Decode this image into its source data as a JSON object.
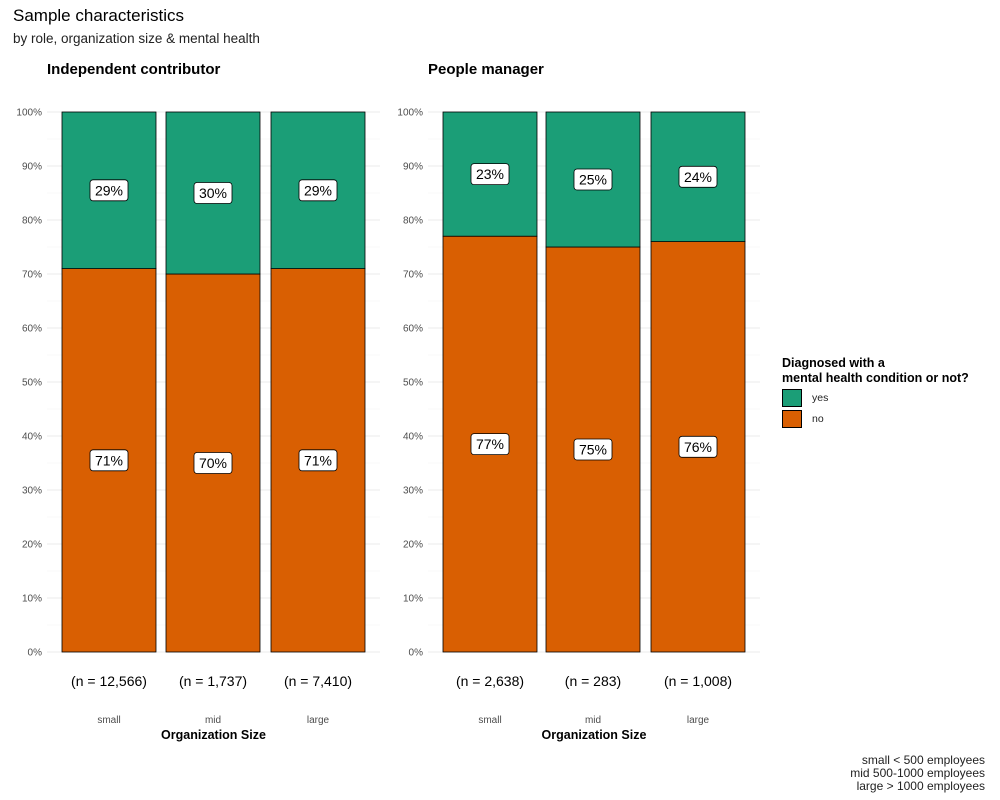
{
  "title": "Sample characteristics",
  "subtitle": "by role, organization size & mental health",
  "caption": [
    "small < 500 employees",
    "mid 500-1000 employees",
    "large > 1000 employees"
  ],
  "colors": {
    "yes": "#1b9e77",
    "no": "#d95f02"
  },
  "legend": {
    "title": [
      "Diagnosed with a",
      "mental health condition or not?"
    ],
    "items": [
      {
        "key": "yes",
        "label": "yes"
      },
      {
        "key": "no",
        "label": "no"
      }
    ]
  },
  "chart_data": [
    {
      "type": "bar",
      "stacked": true,
      "title": "Independent contributor",
      "xlabel": "Organization Size",
      "ylabel": "",
      "ylim": [
        0,
        100
      ],
      "yticks": [
        "0%",
        "10%",
        "20%",
        "30%",
        "40%",
        "50%",
        "60%",
        "70%",
        "80%",
        "90%",
        "100%"
      ],
      "categories": [
        "small",
        "mid",
        "large"
      ],
      "counts": [
        "(n = 12,566)",
        "(n = 1,737)",
        "(n = 7,410)"
      ],
      "series": [
        {
          "name": "no",
          "values": [
            71,
            70,
            71
          ],
          "labels": [
            "71%",
            "70%",
            "71%"
          ]
        },
        {
          "name": "yes",
          "values": [
            29,
            30,
            29
          ],
          "labels": [
            "29%",
            "30%",
            "29%"
          ]
        }
      ]
    },
    {
      "type": "bar",
      "stacked": true,
      "title": "People manager",
      "xlabel": "Organization Size",
      "ylabel": "",
      "ylim": [
        0,
        100
      ],
      "yticks": [
        "0%",
        "10%",
        "20%",
        "30%",
        "40%",
        "50%",
        "60%",
        "70%",
        "80%",
        "90%",
        "100%"
      ],
      "categories": [
        "small",
        "mid",
        "large"
      ],
      "counts": [
        "(n = 2,638)",
        "(n = 283)",
        "(n = 1,008)"
      ],
      "series": [
        {
          "name": "no",
          "values": [
            77,
            75,
            76
          ],
          "labels": [
            "77%",
            "75%",
            "76%"
          ]
        },
        {
          "name": "yes",
          "values": [
            23,
            25,
            24
          ],
          "labels": [
            "23%",
            "25%",
            "24%"
          ]
        }
      ]
    }
  ]
}
